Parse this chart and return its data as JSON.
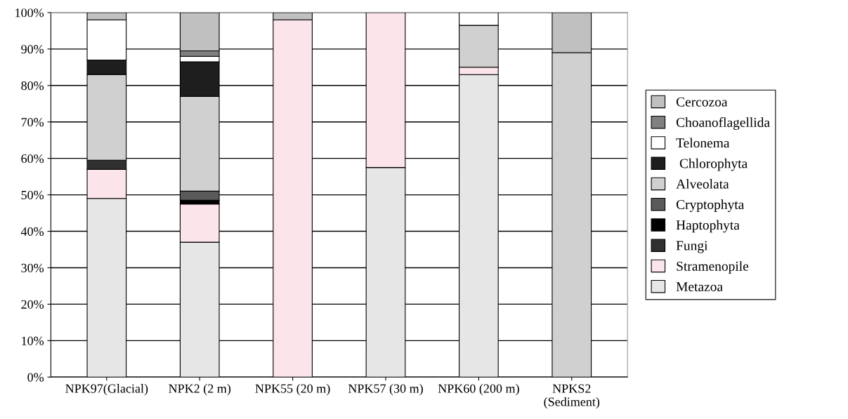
{
  "chart_data": {
    "type": "bar",
    "stacked": true,
    "categories": [
      "NPK97(Glacial)",
      "NPK2 (2 m)",
      "NPK55 (20 m)",
      "NPK57 (30 m)",
      "NPK60 (200 m)",
      "NPKS2\n(Sediment)"
    ],
    "series": [
      {
        "name": "Metazoa",
        "color": "#e6e6e6",
        "values": [
          49,
          37,
          null,
          57.5,
          83,
          null
        ]
      },
      {
        "name": "Stramenopile",
        "color": "#fbe4ea",
        "values": [
          8,
          10.5,
          98,
          42.5,
          2,
          null
        ]
      },
      {
        "name": "Fungi",
        "color": "#303030",
        "values": [
          2.5,
          null,
          null,
          null,
          null,
          null
        ]
      },
      {
        "name": "Haptophyta",
        "color": "#000000",
        "values": [
          null,
          1,
          null,
          null,
          null,
          null
        ]
      },
      {
        "name": "Cryptophyta",
        "color": "#5a5a5a",
        "values": [
          null,
          2.5,
          null,
          null,
          null,
          null
        ]
      },
      {
        "name": "Alveolata",
        "color": "#d0d0d0",
        "values": [
          23.5,
          26,
          null,
          null,
          11.5,
          89
        ]
      },
      {
        "name": " Chlorophyta",
        "color": "#1e1e1e",
        "values": [
          4,
          9.5,
          null,
          null,
          null,
          null
        ]
      },
      {
        "name": "Telonema",
        "color": "#ffffff",
        "values": [
          11,
          1.5,
          null,
          null,
          3.5,
          null
        ]
      },
      {
        "name": "Choanoflagellida",
        "color": "#808080",
        "values": [
          null,
          1.5,
          null,
          null,
          null,
          null
        ]
      },
      {
        "name": "Cercozoa",
        "color": "#c0c0c0",
        "values": [
          2,
          10.5,
          2,
          null,
          null,
          11
        ]
      }
    ],
    "ylim": [
      0,
      100
    ],
    "yticks": [
      {
        "value": 0,
        "label": "0%"
      },
      {
        "value": 10,
        "label": "10%"
      },
      {
        "value": 20,
        "label": "20%"
      },
      {
        "value": 30,
        "label": "30%"
      },
      {
        "value": 40,
        "label": "40%"
      },
      {
        "value": 50,
        "label": "50%"
      },
      {
        "value": 60,
        "label": "60%"
      },
      {
        "value": 70,
        "label": "70%"
      },
      {
        "value": 80,
        "label": "80%"
      },
      {
        "value": 90,
        "label": "90%"
      },
      {
        "value": 100,
        "label": "100%"
      }
    ],
    "grid": "y",
    "legend": "right"
  }
}
